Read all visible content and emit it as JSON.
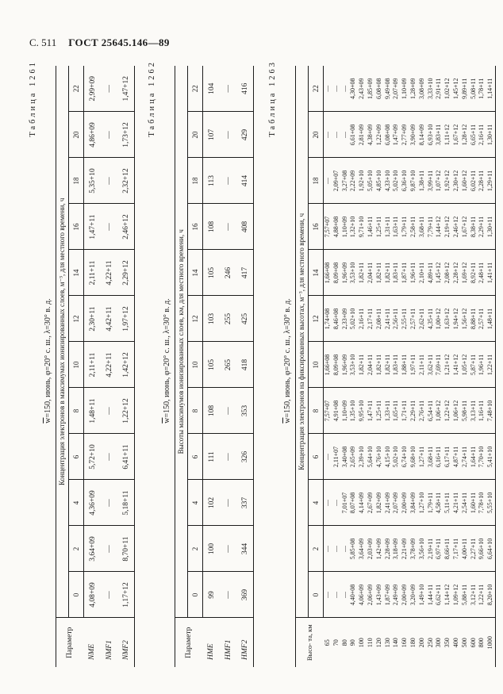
{
  "header": {
    "page_label": "С. 511",
    "doc_label": "ГОСТ 25645.146—89"
  },
  "subtitle": {
    "w": "w",
    "rest": "=150, июнь, φ=20° с. ш., λ=30° в. д."
  },
  "tables": [
    {
      "caption": "Таблица 1261",
      "param_header": "Параметр",
      "span_title": "Концентрация электронов в максимумах ионизированных слоев, м⁻³, для местного времени, ч",
      "hours": [
        "0",
        "2",
        "4",
        "6",
        "8",
        "10",
        "12",
        "14",
        "16",
        "18",
        "20",
        "22"
      ],
      "rows": [
        {
          "label": "NME",
          "values": [
            "4,08+09",
            "3,64+09",
            "4,36+09",
            "5,72+10",
            "1,48+11",
            "2,11+11",
            "2,30+11",
            "2,11+11",
            "1,47+11",
            "5,35+10",
            "4,86+09",
            "2,99+09"
          ]
        },
        {
          "label": "NMF1",
          "values": [
            "—",
            "—",
            "—",
            "—",
            "—",
            "4,22+11",
            "4,42+11",
            "4,22+11",
            "—",
            "—",
            "—",
            "—"
          ]
        },
        {
          "label": "NMF2",
          "values": [
            "1,17+12",
            "8,70+11",
            "5,18+11",
            "6,41+11",
            "1,22+12",
            "1,42+12",
            "1,97+12",
            "2,29+12",
            "2,46+12",
            "2,32+12",
            "1,73+12",
            "1,47+12"
          ]
        }
      ]
    },
    {
      "caption": "Таблица 1262",
      "param_header": "Параметр",
      "span_title": "Высоты максимумов ионизированных слоев, км, для местного времени, ч",
      "hours": [
        "0",
        "2",
        "4",
        "6",
        "8",
        "10",
        "12",
        "14",
        "16",
        "18",
        "20",
        "22"
      ],
      "rows": [
        {
          "label": "HME",
          "values": [
            "99",
            "100",
            "102",
            "111",
            "108",
            "105",
            "103",
            "105",
            "108",
            "113",
            "107",
            "104"
          ]
        },
        {
          "label": "HMF1",
          "values": [
            "—",
            "—",
            "—",
            "—",
            "—",
            "265",
            "255",
            "246",
            "—",
            "—",
            "—",
            "—"
          ]
        },
        {
          "label": "HMF2",
          "values": [
            "369",
            "344",
            "337",
            "326",
            "353",
            "418",
            "425",
            "417",
            "408",
            "414",
            "429",
            "416"
          ]
        }
      ]
    },
    {
      "caption": "Таблица 1263",
      "param_header": "Высо-\nта, км",
      "span_title": "Концентрация электронов на фиксированных высотах, м⁻³, для местного времени, ч",
      "hours": [
        "0",
        "2",
        "4",
        "6",
        "8",
        "10",
        "12",
        "14",
        "16",
        "18",
        "20",
        "22"
      ],
      "rows": [
        {
          "label": "65",
          "values": [
            "—",
            "—",
            "—",
            "—",
            "7,57+07",
            "1,66+08",
            "1,74+08",
            "1,66+08",
            "7,57+07",
            "—",
            "—",
            "—"
          ]
        },
        {
          "label": "70",
          "values": [
            "—",
            "—",
            "—",
            "2,11+07",
            "4,91+08",
            "8,09+08",
            "8,46+08",
            "8,09+08",
            "4,88+08",
            "2,09+07",
            "—",
            "—"
          ]
        },
        {
          "label": "80",
          "values": [
            "—",
            "—",
            "7,01+07",
            "3,40+08",
            "1,10+09",
            "1,96+09",
            "2,33+09",
            "1,96+09",
            "1,10+09",
            "3,27+08",
            "—",
            "—"
          ]
        },
        {
          "label": "90",
          "values": [
            "4,40+08",
            "5,85+08",
            "8,07+08",
            "2,65+09",
            "1,35+10",
            "3,53+10",
            "5,02+10",
            "3,53+10",
            "1,32+10",
            "2,22+09",
            "6,61+08",
            "4,30+08"
          ]
        },
        {
          "label": "100",
          "values": [
            "4,06+09",
            "3,64+09",
            "4,14+09",
            "2,39+10",
            "9,95+10",
            "1,82+11",
            "2,16+11",
            "1,82+11",
            "9,71+10",
            "1,92+10",
            "2,81+09",
            "2,43+09"
          ]
        },
        {
          "label": "110",
          "values": [
            "2,06+09",
            "2,03+09",
            "2,67+09",
            "5,64+10",
            "1,47+11",
            "2,04+11",
            "2,17+11",
            "2,04+11",
            "1,46+11",
            "5,05+10",
            "4,38+09",
            "1,85+09"
          ]
        },
        {
          "label": "120",
          "values": [
            "1,43+09",
            "1,42+09",
            "1,82+09",
            "4,76+10",
            "1,25+11",
            "1,82+11",
            "2,08+11",
            "1,82+11",
            "1,25+11",
            "4,85+10",
            "1,22+09",
            "6,08+08"
          ]
        },
        {
          "label": "130",
          "values": [
            "1,87+09",
            "2,28+09",
            "2,41+09",
            "4,15+10",
            "1,33+11",
            "1,82+11",
            "2,41+11",
            "1,82+11",
            "1,31+11",
            "4,33+10",
            "6,08+08",
            "9,49+08"
          ]
        },
        {
          "label": "140",
          "values": [
            "2,49+09",
            "3,18+09",
            "2,07+09",
            "5,02+10",
            "1,65+11",
            "1,83+11",
            "2,56+11",
            "1,83+11",
            "1,63+11",
            "5,02+10",
            "1,47+09",
            "2,07+09"
          ]
        },
        {
          "label": "160",
          "values": [
            "2,00+09",
            "2,21+09",
            "2,00+09",
            "6,74+10",
            "1,71+11",
            "1,88+11",
            "2,55+11",
            "1,87+11",
            "1,79+11",
            "6,36+10",
            "2,77+09",
            "1,10+09"
          ]
        },
        {
          "label": "180",
          "values": [
            "3,20+09",
            "3,78+09",
            "3,84+09",
            "9,68+10",
            "2,29+11",
            "1,97+11",
            "2,57+11",
            "1,96+11",
            "2,58+11",
            "9,87+10",
            "3,90+09",
            "1,28+09"
          ]
        },
        {
          "label": "200",
          "values": [
            "1,49+10",
            "3,56+10",
            "1,27+10",
            "1,27+11",
            "2,76+11",
            "2,11+11",
            "2,62+11",
            "2,10+11",
            "3,68+11",
            "1,38+11",
            "8,14+09",
            "3,08+09"
          ]
        },
        {
          "label": "250",
          "values": [
            "1,44+11",
            "2,19+11",
            "1,79+11",
            "3,68+11",
            "6,54+11",
            "3,62+11",
            "4,35+11",
            "4,89+11",
            "7,79+11",
            "3,99+11",
            "6,93+10",
            "3,33+10"
          ]
        },
        {
          "label": "300",
          "values": [
            "6,62+11",
            "6,97+11",
            "4,58+11",
            "6,16+11",
            "1,06+12",
            "7,69+11",
            "1,00+12",
            "1,45+12",
            "1,44+12",
            "1,07+12",
            "3,83+11",
            "2,91+11"
          ]
        },
        {
          "label": "350",
          "values": [
            "1,14+12",
            "8,66+11",
            "5,11+11",
            "6,17+11",
            "1,22+12",
            "1,21+12",
            "1,63+12",
            "2,08+12",
            "2,19+12",
            "1,92+12",
            "1,11+12",
            "1,02+12"
          ]
        },
        {
          "label": "400",
          "values": [
            "1,09+12",
            "7,17+11",
            "4,21+11",
            "4,87+11",
            "1,06+12",
            "1,41+12",
            "1,94+12",
            "2,28+12",
            "2,46+12",
            "2,30+12",
            "1,67+12",
            "1,45+12"
          ]
        },
        {
          "label": "500",
          "values": [
            "5,88+11",
            "4,00+11",
            "2,54+11",
            "2,74+11",
            "5,98+11",
            "1,05+12",
            "1,56+12",
            "1,69+12",
            "1,67+12",
            "1,60+12",
            "1,28+12",
            "9,89+11"
          ]
        },
        {
          "label": "600",
          "values": [
            "3,12+11",
            "2,27+11",
            "1,60+11",
            "1,64+11",
            "3,13+11",
            "5,87+11",
            "8,88+11",
            "8,92+11",
            "8,38+11",
            "6,02+11",
            "6,65+11",
            "5,08+11"
          ]
        },
        {
          "label": "800",
          "values": [
            "1,22+11",
            "9,66+10",
            "7,78+10",
            "7,70+10",
            "1,16+11",
            "1,96+11",
            "2,57+11",
            "2,48+11",
            "2,29+11",
            "2,28+11",
            "2,16+11",
            "1,78+11"
          ]
        },
        {
          "label": "1000",
          "values": [
            "8,20+10",
            "6,64+10",
            "5,55+10",
            "5,41+10",
            "7,48+10",
            "1,22+11",
            "1,48+11",
            "1,41+11",
            "1,30+11",
            "1,29+11",
            "1,30+11",
            "1,14+11"
          ]
        }
      ]
    }
  ]
}
